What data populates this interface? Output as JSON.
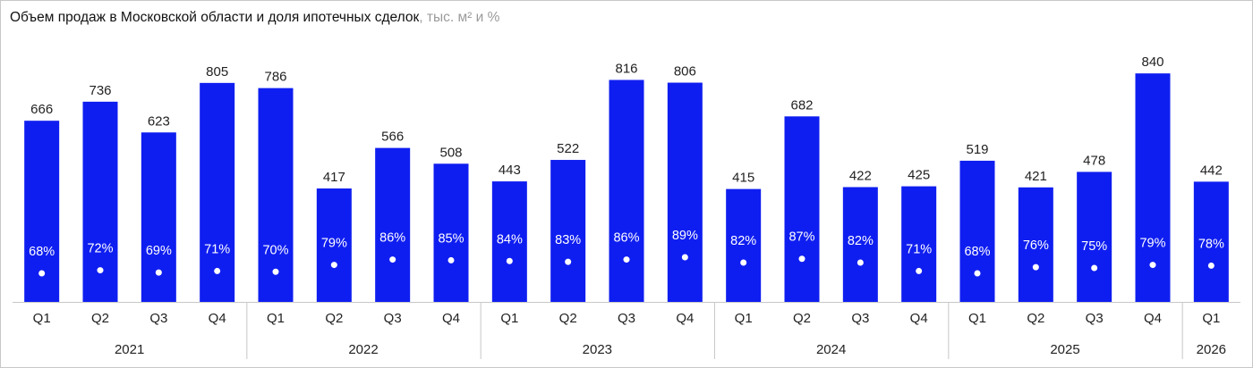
{
  "title": {
    "main": "Объем продаж в Московской области и доля ипотечных сделок",
    "unit": ", тыс. м² и %"
  },
  "colors": {
    "bar": "#0f1ef0",
    "dot": "#ffffff",
    "axis": "#c8c8c8"
  },
  "chart_data": {
    "type": "bar",
    "categories": [
      "Q1",
      "Q2",
      "Q3",
      "Q4",
      "Q1",
      "Q2",
      "Q3",
      "Q4",
      "Q1",
      "Q2",
      "Q3",
      "Q4",
      "Q1",
      "Q2",
      "Q3",
      "Q4",
      "Q1",
      "Q2",
      "Q3",
      "Q4",
      "Q1"
    ],
    "groups": [
      {
        "label": "2021",
        "count": 4
      },
      {
        "label": "2022",
        "count": 4
      },
      {
        "label": "2023",
        "count": 4
      },
      {
        "label": "2024",
        "count": 4
      },
      {
        "label": "2025",
        "count": 4
      },
      {
        "label": "2026",
        "count": 1
      }
    ],
    "series": [
      {
        "values": [
          666,
          736,
          623,
          805,
          786,
          417,
          566,
          508,
          443,
          522,
          816,
          806,
          415,
          682,
          422,
          425,
          519,
          421,
          478,
          840,
          442
        ]
      },
      {
        "values": [
          68,
          72,
          69,
          71,
          70,
          79,
          86,
          85,
          84,
          83,
          86,
          89,
          82,
          87,
          82,
          71,
          68,
          76,
          75,
          79,
          78
        ],
        "unit": "%"
      }
    ],
    "ylim": [
      0,
      880
    ],
    "pct_range": [
      0,
      100
    ],
    "grid": false
  }
}
